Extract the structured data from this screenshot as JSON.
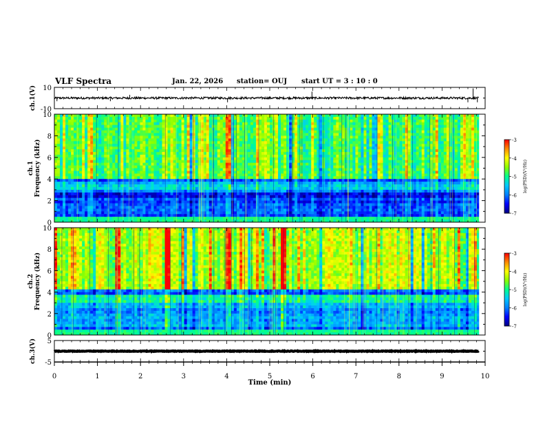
{
  "header": {
    "title": "VLF Spectra",
    "date": "Jan. 22, 2026",
    "station": "station= OUJ",
    "start": "start  UT =  3 : 10 : 0"
  },
  "colors": {
    "scale": [
      "#000080",
      "#0000ff",
      "#0080ff",
      "#00c8ff",
      "#00ff90",
      "#8cff00",
      "#ffff00",
      "#ff8c00",
      "#ff0000",
      "#ff9fb0",
      "#ffffff"
    ],
    "trace": "#000000",
    "frame": "#000000"
  },
  "chart_data": [
    {
      "type": "line",
      "name": "ch1-waveform",
      "ylabel": "ch.1(V)",
      "ylim": [
        -10,
        10
      ],
      "yticks": [
        {
          "v": 10,
          "label": "10"
        },
        {
          "v": -10,
          "label": "-10"
        }
      ],
      "baseline": 0,
      "noise": 1,
      "spikes": [
        {
          "t": 0.06,
          "v": -3
        },
        {
          "t": 1.3,
          "v": -3
        },
        {
          "t": 1.75,
          "v": 3
        },
        {
          "t": 4.02,
          "v": -4
        },
        {
          "t": 5.98,
          "v": 6
        },
        {
          "t": 9.6,
          "v": -4
        },
        {
          "t": 9.72,
          "v": 9
        },
        {
          "t": 9.82,
          "v": -4
        }
      ]
    },
    {
      "type": "heatmap",
      "name": "ch1-spectrogram",
      "ylabel_line1": "ch.1",
      "ylabel_line2": "Frequency (kHz)",
      "ylim": [
        0,
        10
      ],
      "yticks": [
        "0",
        "2",
        "4",
        "6",
        "8",
        "10"
      ],
      "colorbar": {
        "range": [
          -7,
          -3
        ],
        "ticks": [
          "-3",
          "-4",
          "-5",
          "-6",
          "-7"
        ],
        "label": "log(PSD)(V²/Hz)"
      },
      "levels": {
        "high_band": -4.8,
        "low_band": -6.2,
        "band_edge_khz": 4
      },
      "strong_bursts_min": [
        4.02
      ]
    },
    {
      "type": "heatmap",
      "name": "ch2-spectrogram",
      "ylabel_line1": "ch.2",
      "ylabel_line2": "Frequency (kHz)",
      "ylim": [
        0,
        10
      ],
      "yticks": [
        "0",
        "2",
        "4",
        "6",
        "8",
        "10"
      ],
      "colorbar": {
        "range": [
          -7,
          -3
        ],
        "ticks": [
          "-3",
          "-4",
          "-5",
          "-6",
          "-7"
        ],
        "label": "log(PSD)(V²/Hz)"
      },
      "levels": {
        "high_band": -4.4,
        "low_band": -5.9,
        "band_edge_khz": 4.3
      },
      "strong_bursts_min": [
        4.02,
        1.45,
        2.65,
        5.3
      ]
    },
    {
      "type": "line",
      "name": "ch3-waveform",
      "ylabel": "ch.3(V)",
      "ylim": [
        -5,
        5
      ],
      "yticks": [
        {
          "v": 5,
          "label": "5"
        },
        {
          "v": -5,
          "label": "-5"
        }
      ],
      "baseline": 0,
      "noise": 0.15,
      "spikes": []
    }
  ],
  "xaxis": {
    "label": "Time  (min)",
    "xlim": [
      0,
      10
    ],
    "ticks": [
      "0",
      "1",
      "2",
      "3",
      "4",
      "5",
      "6",
      "7",
      "8",
      "9",
      "10"
    ]
  }
}
